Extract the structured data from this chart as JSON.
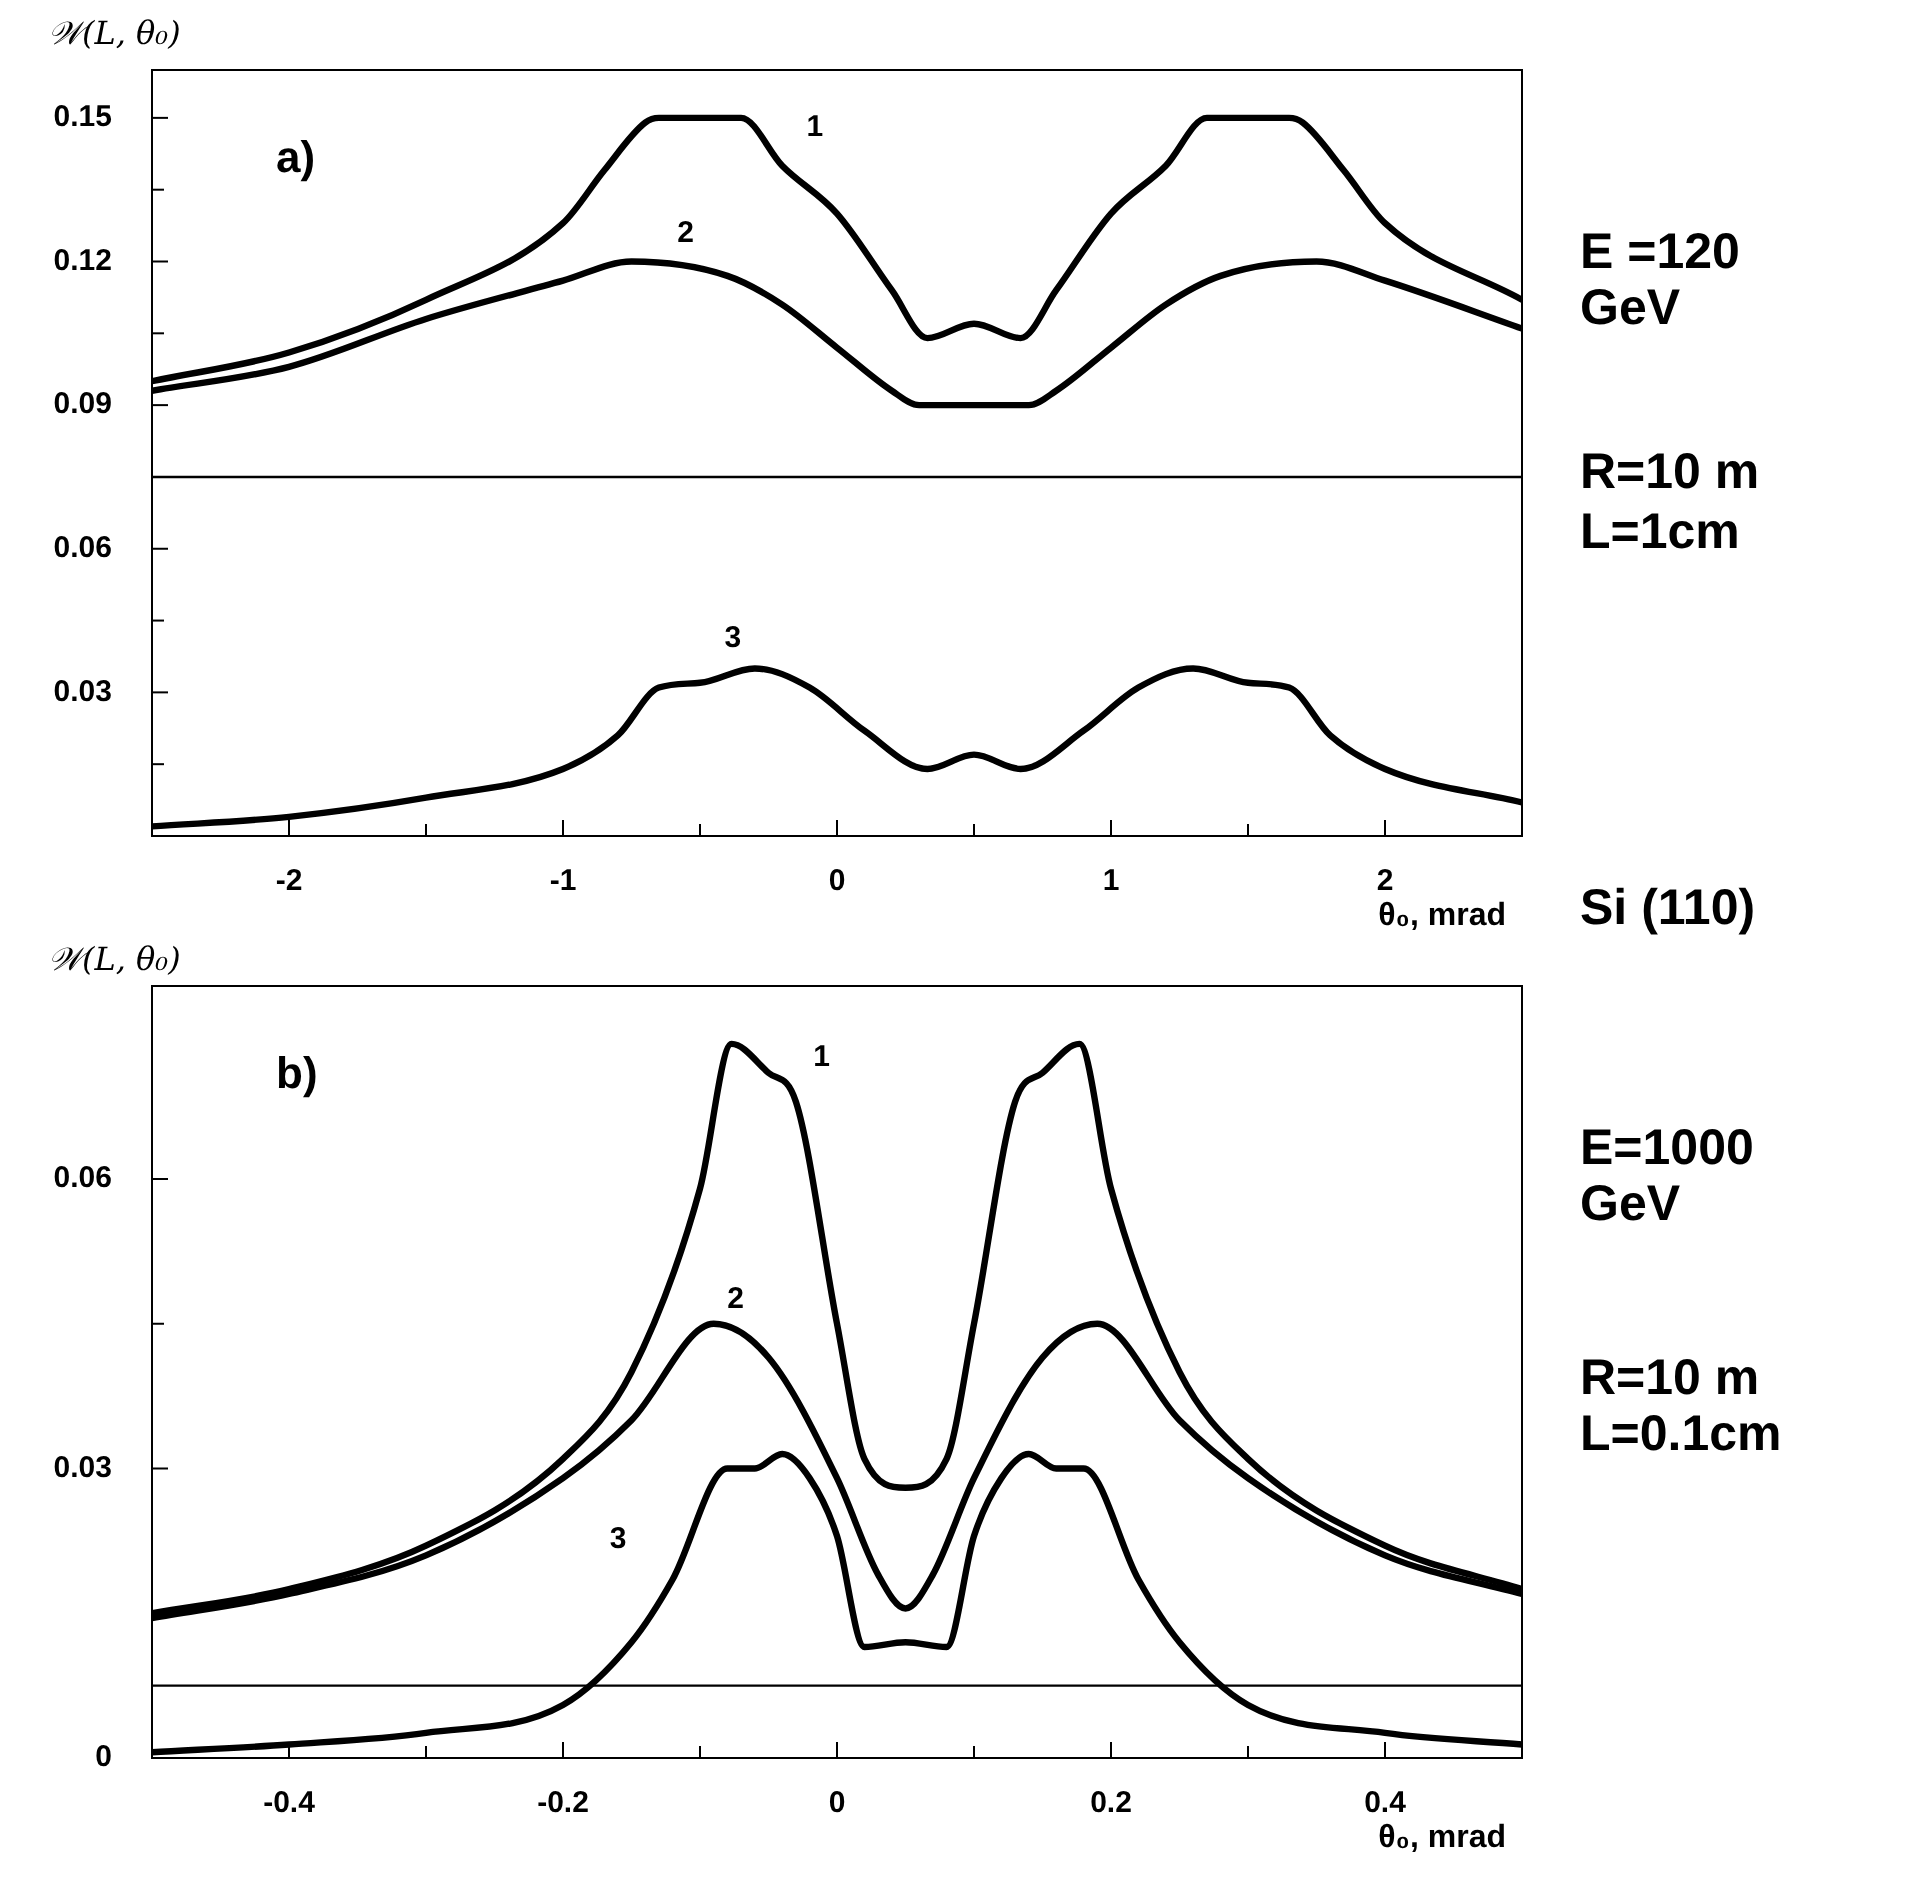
{
  "chart_data": [
    {
      "type": "line",
      "title": "a)",
      "xlabel": "θ₀, mrad",
      "ylabel": "𝒲(L, θ₀)",
      "marker": "none",
      "xlim": [
        -2.5,
        2.5
      ],
      "xticks": [
        -2,
        {
          "value": -1.5,
          "label": null
        },
        -1,
        {
          "value": -0.5,
          "label": null
        },
        0,
        {
          "value": 0.5,
          "label": null
        },
        1,
        {
          "value": 1.5,
          "label": null
        },
        2
      ],
      "ylim": [
        0,
        0.16
      ],
      "yticks": [
        {
          "value": 0.015,
          "label": null
        },
        0.03,
        {
          "value": 0.045,
          "label": null
        },
        0.06,
        0.09,
        {
          "value": 0.105,
          "label": null
        },
        0.12,
        {
          "value": 0.135,
          "label": null
        },
        0.15
      ],
      "ref_lines": [
        {
          "axis": "y",
          "value": 0.075,
          "color": "#000000"
        }
      ],
      "annotations": [
        "E =120 GeV",
        "R=10 m",
        "L=1cm",
        "Si (110)"
      ],
      "series": [
        {
          "name": "1",
          "color": "#000000",
          "x": [
            -2.5,
            -2,
            -1.5,
            -1,
            -0.85,
            -0.7,
            -0.65,
            -0.35,
            -0.2,
            0,
            0.2,
            0.33,
            0.5,
            0.67,
            0.8,
            1,
            1.2,
            1.35,
            1.65,
            1.7,
            1.85,
            2,
            2.5
          ],
          "values": [
            0.095,
            0.101,
            0.112,
            0.128,
            0.139,
            0.149,
            0.15,
            0.15,
            0.14,
            0.13,
            0.114,
            0.104,
            0.107,
            0.104,
            0.114,
            0.13,
            0.14,
            0.15,
            0.15,
            0.149,
            0.139,
            0.128,
            0.112
          ]
        },
        {
          "name": "2",
          "color": "#000000",
          "x": [
            -2.5,
            -2,
            -1.5,
            -1,
            -0.75,
            -0.4,
            -0.2,
            0,
            0.2,
            0.3,
            0.5,
            0.7,
            0.8,
            1,
            1.2,
            1.4,
            1.75,
            2,
            2.5
          ],
          "values": [
            0.093,
            0.098,
            0.108,
            0.116,
            0.12,
            0.117,
            0.111,
            0.102,
            0.093,
            0.09,
            0.09,
            0.09,
            0.093,
            0.102,
            0.111,
            0.117,
            0.12,
            0.116,
            0.106
          ]
        },
        {
          "name": "3",
          "color": "#000000",
          "x": [
            -2.5,
            -2,
            -1.5,
            -1,
            -0.8,
            -0.65,
            -0.5,
            -0.3,
            -0.1,
            0.1,
            0.33,
            0.5,
            0.67,
            0.9,
            1.1,
            1.3,
            1.5,
            1.65,
            1.8,
            2,
            2.5
          ],
          "values": [
            0.002,
            0.004,
            0.008,
            0.014,
            0.021,
            0.031,
            0.032,
            0.035,
            0.031,
            0.022,
            0.014,
            0.017,
            0.014,
            0.022,
            0.031,
            0.035,
            0.032,
            0.031,
            0.021,
            0.014,
            0.007
          ]
        }
      ]
    },
    {
      "type": "line",
      "title": "b)",
      "xlabel": "θ₀, mrad",
      "ylabel": "𝒲(L, θ₀)",
      "marker": "none",
      "xlim": [
        -0.5,
        0.5
      ],
      "xticks": [
        -0.4,
        {
          "value": -0.3,
          "label": null
        },
        -0.2,
        {
          "value": -0.1,
          "label": null
        },
        0,
        {
          "value": 0.1,
          "label": null
        },
        0.2,
        {
          "value": 0.3,
          "label": null
        },
        0.4
      ],
      "ylim": [
        0,
        0.08
      ],
      "yticks": [
        0,
        {
          "value": 0.015,
          "label": null
        },
        0.03,
        {
          "value": 0.045,
          "label": null
        },
        0.06
      ],
      "ref_lines": [
        {
          "axis": "y",
          "value": 0.0075,
          "color": "#000000"
        }
      ],
      "annotations": [
        "E=1000 GeV",
        "R=10 m",
        "L=0.1cm"
      ],
      "series": [
        {
          "name": "1",
          "color": "#000000",
          "x": [
            -0.5,
            -0.4,
            -0.3,
            -0.2,
            -0.15,
            -0.1,
            -0.077,
            -0.05,
            -0.03,
            0,
            0.02,
            0.05,
            0.08,
            0.1,
            0.13,
            0.15,
            0.177,
            0.2,
            0.25,
            0.3,
            0.4,
            0.5
          ],
          "values": [
            0.015,
            0.0175,
            0.022,
            0.031,
            0.04,
            0.059,
            0.074,
            0.071,
            0.068,
            0.045,
            0.031,
            0.028,
            0.031,
            0.045,
            0.068,
            0.071,
            0.074,
            0.059,
            0.04,
            0.031,
            0.022,
            0.0175
          ]
        },
        {
          "name": "2",
          "color": "#000000",
          "x": [
            -0.5,
            -0.4,
            -0.3,
            -0.2,
            -0.15,
            -0.09,
            -0.05,
            0,
            0.03,
            0.05,
            0.07,
            0.1,
            0.15,
            0.19,
            0.25,
            0.3,
            0.4,
            0.5
          ],
          "values": [
            0.0145,
            0.017,
            0.021,
            0.029,
            0.035,
            0.045,
            0.0415,
            0.029,
            0.019,
            0.0155,
            0.019,
            0.029,
            0.0415,
            0.045,
            0.035,
            0.029,
            0.021,
            0.017
          ]
        },
        {
          "name": "3",
          "color": "#000000",
          "x": [
            -0.5,
            -0.4,
            -0.3,
            -0.2,
            -0.15,
            -0.12,
            -0.08,
            -0.06,
            -0.04,
            -0.02,
            0,
            0.02,
            0.05,
            0.08,
            0.1,
            0.12,
            0.14,
            0.16,
            0.18,
            0.22,
            0.25,
            0.3,
            0.4,
            0.5
          ],
          "values": [
            0.0006,
            0.0014,
            0.0026,
            0.0055,
            0.012,
            0.0185,
            0.03,
            0.03,
            0.0315,
            0.029,
            0.023,
            0.0115,
            0.012,
            0.0115,
            0.023,
            0.029,
            0.0315,
            0.03,
            0.03,
            0.0185,
            0.012,
            0.0055,
            0.0026,
            0.0014
          ]
        }
      ]
    }
  ]
}
